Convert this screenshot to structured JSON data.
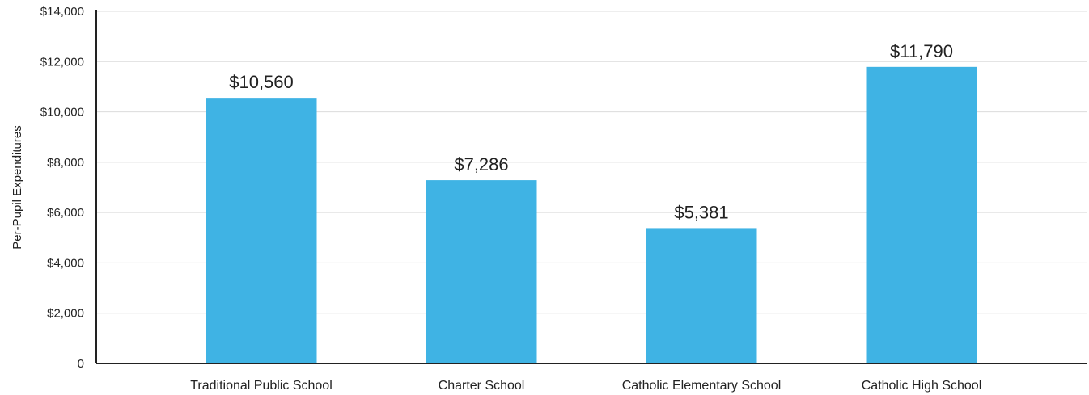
{
  "chart_data": {
    "type": "bar",
    "categories": [
      "Traditional Public School",
      "Charter School",
      "Catholic Elementary School",
      "Catholic High School"
    ],
    "values": [
      10560,
      7286,
      5381,
      11790
    ],
    "value_labels": [
      "$10,560",
      "$7,286",
      "$5,381",
      "$11,790"
    ],
    "title": "",
    "xlabel": "",
    "ylabel": "Per-Pupil Expenditures",
    "ylim": [
      0,
      14000
    ],
    "yticks": [
      0,
      2000,
      4000,
      6000,
      8000,
      10000,
      12000,
      14000
    ],
    "ytick_labels": [
      "0",
      "$2,000",
      "$4,000",
      "$6,000",
      "$8,000",
      "$10,000",
      "$12,000",
      "$14,000"
    ],
    "grid": true,
    "legend": "none",
    "colors": {
      "bar": "#3fb3e4",
      "axis": "#222222",
      "grid": "#dcdcdc",
      "text": "#222222"
    }
  }
}
